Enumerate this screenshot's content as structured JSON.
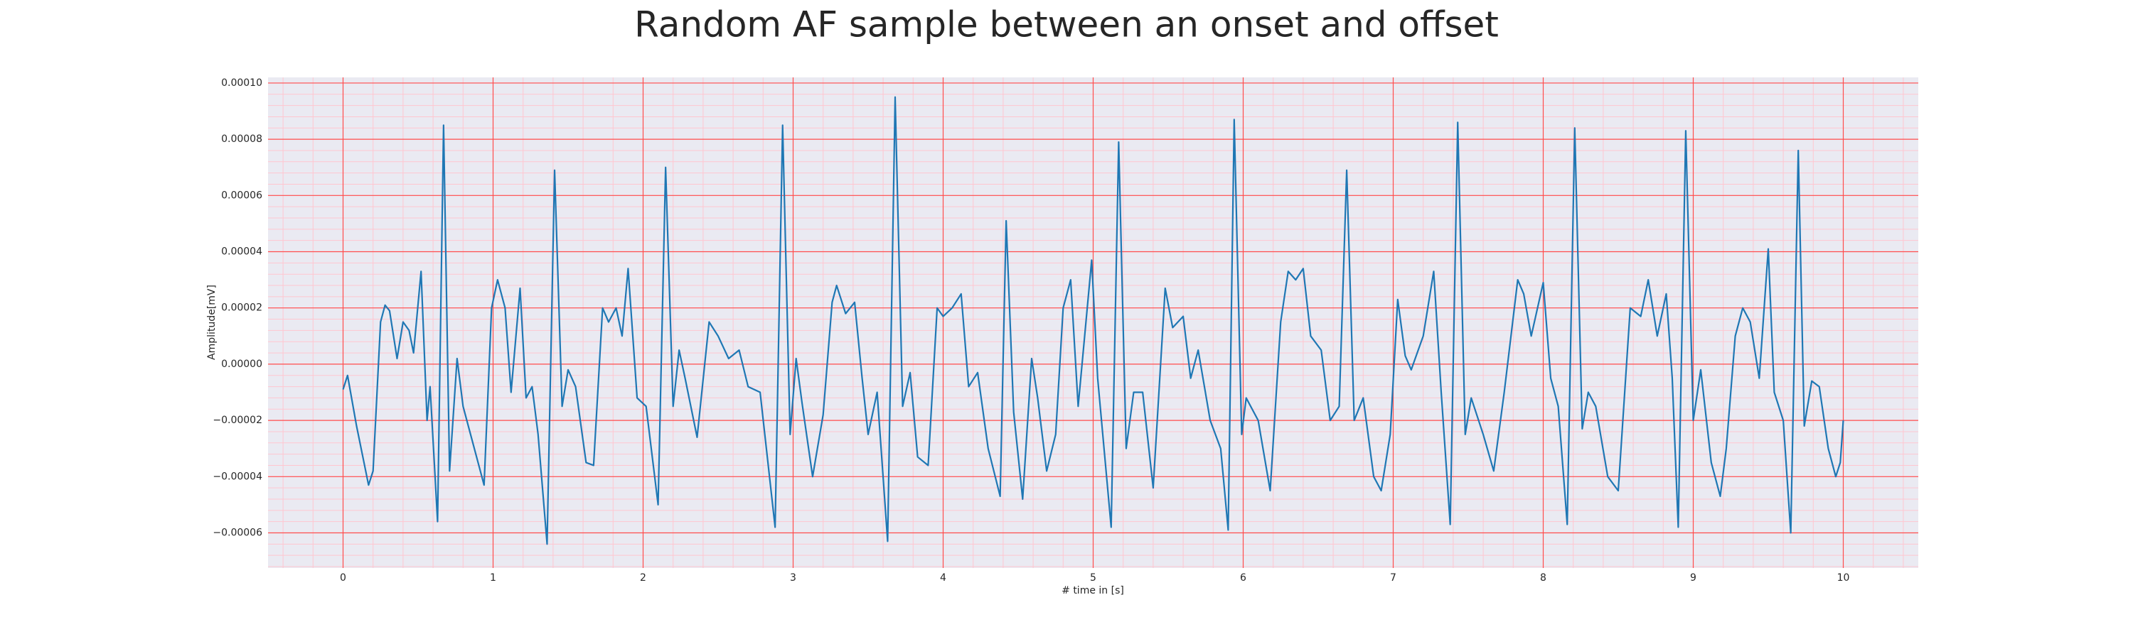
{
  "chart_data": {
    "type": "line",
    "title": "Random AF sample between an onset and offset",
    "xlabel": "# time in [s]",
    "ylabel": "Amplitude[mV]",
    "color": "#1f77b4",
    "grid": true,
    "grid_color": "#ff4d4d",
    "minor_grid": true,
    "xlim": [
      -0.5,
      10.5
    ],
    "ylim": [
      -7.25e-05,
      0.000102
    ],
    "xticks": [
      0,
      1,
      2,
      3,
      4,
      5,
      6,
      7,
      8,
      9,
      10
    ],
    "yticks": [
      {
        "value": 0.0001,
        "label": "0.00010"
      },
      {
        "value": 8e-05,
        "label": "0.00008"
      },
      {
        "value": 6e-05,
        "label": "0.00006"
      },
      {
        "value": 4e-05,
        "label": "0.00004"
      },
      {
        "value": 2e-05,
        "label": "0.00002"
      },
      {
        "value": 0,
        "label": "0.00000"
      },
      {
        "value": -2e-05,
        "label": "−0.00002"
      },
      {
        "value": -4e-05,
        "label": "−0.00004"
      },
      {
        "value": -6e-05,
        "label": "−0.00006"
      }
    ],
    "x": [
      0,
      0.03,
      0.09,
      0.17,
      0.2,
      0.25,
      0.28,
      0.31,
      0.36,
      0.4,
      0.44,
      0.47,
      0.52,
      0.56,
      0.58,
      0.63,
      0.67,
      0.71,
      0.76,
      0.8,
      0.85,
      0.9,
      0.94,
      0.99,
      1.03,
      1.08,
      1.12,
      1.18,
      1.22,
      1.26,
      1.3,
      1.36,
      1.41,
      1.46,
      1.5,
      1.55,
      1.62,
      1.67,
      1.73,
      1.77,
      1.82,
      1.86,
      1.9,
      1.96,
      2.02,
      2.1,
      2.15,
      2.2,
      2.24,
      2.28,
      2.36,
      2.44,
      2.5,
      2.57,
      2.64,
      2.7,
      2.78,
      2.88,
      2.93,
      2.98,
      3.02,
      3.06,
      3.13,
      3.2,
      3.26,
      3.29,
      3.35,
      3.41,
      3.46,
      3.5,
      3.56,
      3.63,
      3.68,
      3.73,
      3.78,
      3.83,
      3.9,
      3.96,
      4.0,
      4.06,
      4.12,
      4.17,
      4.23,
      4.3,
      4.38,
      4.42,
      4.47,
      4.53,
      4.59,
      4.63,
      4.69,
      4.75,
      4.8,
      4.85,
      4.9,
      4.99,
      5.03,
      5.12,
      5.17,
      5.22,
      5.27,
      5.33,
      5.4,
      5.48,
      5.53,
      5.6,
      5.65,
      5.7,
      5.78,
      5.85,
      5.9,
      5.94,
      5.99,
      6.02,
      6.1,
      6.18,
      6.25,
      6.3,
      6.35,
      6.4,
      6.45,
      6.52,
      6.58,
      6.64,
      6.69,
      6.74,
      6.8,
      6.87,
      6.92,
      6.98,
      7.03,
      7.08,
      7.12,
      7.2,
      7.27,
      7.32,
      7.38,
      7.43,
      7.48,
      7.52,
      7.6,
      7.67,
      7.74,
      7.83,
      7.87,
      7.92,
      8.0,
      8.05,
      8.1,
      8.16,
      8.21,
      8.26,
      8.3,
      8.35,
      8.43,
      8.5,
      8.58,
      8.65,
      8.7,
      8.76,
      8.82,
      8.86,
      8.9,
      8.95,
      9.0,
      9.05,
      9.12,
      9.18,
      9.22,
      9.28,
      9.33,
      9.38,
      9.44,
      9.5,
      9.54,
      9.6,
      9.65,
      9.7,
      9.74,
      9.79,
      9.84,
      9.9,
      9.95,
      9.98,
      10
    ],
    "values": [
      -9e-06,
      -4e-06,
      -2.2e-05,
      -4.3e-05,
      -3.8e-05,
      1.5e-05,
      2.1e-05,
      1.9e-05,
      2e-06,
      1.5e-05,
      1.2e-05,
      4e-06,
      3.3e-05,
      -2e-05,
      -8e-06,
      -5.6e-05,
      8.5e-05,
      -3.8e-05,
      2e-06,
      -1.5e-05,
      -2.5e-05,
      -3.5e-05,
      -4.3e-05,
      2e-05,
      3e-05,
      2e-05,
      -1e-05,
      2.7e-05,
      -1.2e-05,
      -8e-06,
      -2.5e-05,
      -6.4e-05,
      6.9e-05,
      -1.5e-05,
      -2e-06,
      -8e-06,
      -3.5e-05,
      -3.6e-05,
      2e-05,
      1.5e-05,
      2e-05,
      1e-05,
      3.4e-05,
      -1.2e-05,
      -1.5e-05,
      -5e-05,
      7e-05,
      -1.5e-05,
      5e-06,
      -5e-06,
      -2.6e-05,
      1.5e-05,
      1e-05,
      2e-06,
      5e-06,
      -8e-06,
      -1e-05,
      -5.8e-05,
      8.5e-05,
      -2.5e-05,
      2e-06,
      -1.4e-05,
      -4e-05,
      -1.8e-05,
      2.2e-05,
      2.8e-05,
      1.8e-05,
      2.2e-05,
      -5e-06,
      -2.5e-05,
      -1e-05,
      -6.3e-05,
      9.5e-05,
      -1.5e-05,
      -3e-06,
      -3.3e-05,
      -3.6e-05,
      2e-05,
      1.7e-05,
      2e-05,
      2.5e-05,
      -8e-06,
      -3e-06,
      -3e-05,
      -4.7e-05,
      5.1e-05,
      -1.7e-05,
      -4.8e-05,
      2e-06,
      -1.2e-05,
      -3.8e-05,
      -2.5e-05,
      2e-05,
      3e-05,
      -1.5e-05,
      3.7e-05,
      -5e-06,
      -5.8e-05,
      7.9e-05,
      -3e-05,
      -1e-05,
      -1e-05,
      -4.4e-05,
      2.7e-05,
      1.3e-05,
      1.7e-05,
      -5e-06,
      5e-06,
      -2e-05,
      -3e-05,
      -5.9e-05,
      8.7e-05,
      -2.5e-05,
      -1.2e-05,
      -2e-05,
      -4.5e-05,
      1.5e-05,
      3.3e-05,
      3e-05,
      3.4e-05,
      1e-05,
      5e-06,
      -2e-05,
      -1.5e-05,
      6.9e-05,
      -2e-05,
      -1.2e-05,
      -4e-05,
      -4.5e-05,
      -2.5e-05,
      2.3e-05,
      3e-06,
      -2e-06,
      1e-05,
      3.3e-05,
      -1e-05,
      -5.7e-05,
      8.6e-05,
      -2.5e-05,
      -1.2e-05,
      -2.5e-05,
      -3.8e-05,
      -1e-05,
      3e-05,
      2.5e-05,
      1e-05,
      2.9e-05,
      -5e-06,
      -1.5e-05,
      -5.7e-05,
      8.4e-05,
      -2.3e-05,
      -1e-05,
      -1.5e-05,
      -4e-05,
      -4.5e-05,
      2e-05,
      1.7e-05,
      3e-05,
      1e-05,
      2.5e-05,
      -5e-06,
      -5.8e-05,
      8.3e-05,
      -2e-05,
      -2e-06,
      -3.5e-05,
      -4.7e-05,
      -3e-05,
      1e-05,
      2e-05,
      1.5e-05,
      -5e-06,
      4.1e-05,
      -1e-05,
      -2e-05,
      -6e-05,
      7.6e-05,
      -2.2e-05,
      -6e-06,
      -8e-06,
      -3e-05,
      -4e-05,
      -3.5e-05,
      -2e-05
    ]
  }
}
